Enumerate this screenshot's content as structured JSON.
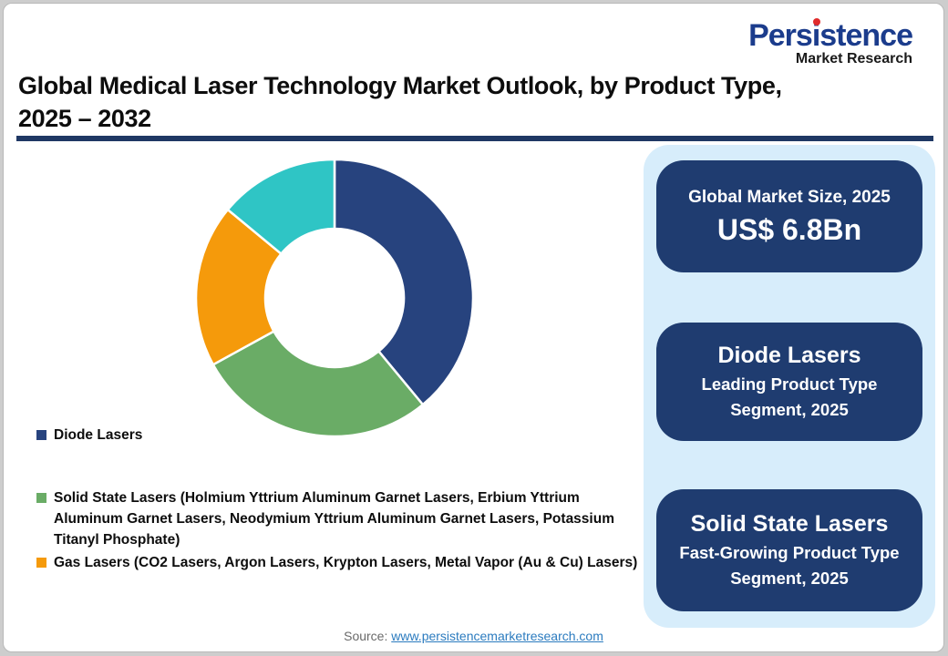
{
  "logo": {
    "brand": "Persistence",
    "tagline": "Market Research"
  },
  "header": {
    "title_line1": "Global Medical Laser Technology Market Outlook, by Product Type,",
    "title_line2": "2025 – 2032"
  },
  "chart_data": {
    "type": "pie",
    "subtype": "donut",
    "title": "Global Medical Laser Technology Market Outlook, by Product Type, 2025 – 2032",
    "start_angle_deg": 0,
    "direction": "clockwise",
    "donut_hole_ratio": 0.5,
    "legend_position": "below-left",
    "data_labels_shown": false,
    "slices": [
      {
        "label": "Diode Lasers",
        "value_pct": 39,
        "color": "#27437E"
      },
      {
        "label": "Solid State Lasers (Holmium Yttrium Aluminum Garnet Lasers, Erbium Yttrium Aluminum Garnet Lasers, Neodymium Yttrium Aluminum Garnet Lasers, Potassium Titanyl Phosphate)",
        "value_pct": 28,
        "color": "#6AAC66"
      },
      {
        "label": "Gas Lasers (CO2 Lasers, Argon Lasers, Krypton Lasers, Metal Vapor (Au & Cu) Lasers)",
        "value_pct": 19,
        "color": "#F59A0B"
      },
      {
        "label": "",
        "value_pct": 14,
        "color": "#2FC5C5"
      }
    ]
  },
  "legend": {
    "items": [
      {
        "label": "Diode Lasers",
        "color": "#27437E"
      },
      {
        "label": "Solid State Lasers (Holmium Yttrium Aluminum Garnet Lasers, Erbium Yttrium Aluminum Garnet Lasers, Neodymium Yttrium Aluminum Garnet Lasers, Potassium Titanyl Phosphate)",
        "color": "#6AAC66"
      },
      {
        "label": "Gas Lasers (CO2 Lasers, Argon Lasers, Krypton Lasers, Metal Vapor (Au & Cu) Lasers)",
        "color": "#F59A0B"
      }
    ]
  },
  "highlight_cards": [
    {
      "heading": "Global Market Size, 2025",
      "value": "US$ 6.8Bn"
    },
    {
      "heading": "Diode Lasers",
      "subtext": "Leading Product Type Segment, 2025"
    },
    {
      "heading": "Solid State Lasers",
      "subtext": "Fast-Growing Product Type Segment, 2025"
    }
  ],
  "footer": {
    "source_prefix": "Source: ",
    "source_link": "www.persistencemarketresearch.com"
  },
  "colors": {
    "accent_navy": "#1F3864",
    "card_navy": "#1F3C70",
    "panel_blue": "#D7EDFB",
    "logo_blue": "#1B3C8C",
    "logo_red": "#E02B2B",
    "link_blue": "#2B7BBF"
  }
}
